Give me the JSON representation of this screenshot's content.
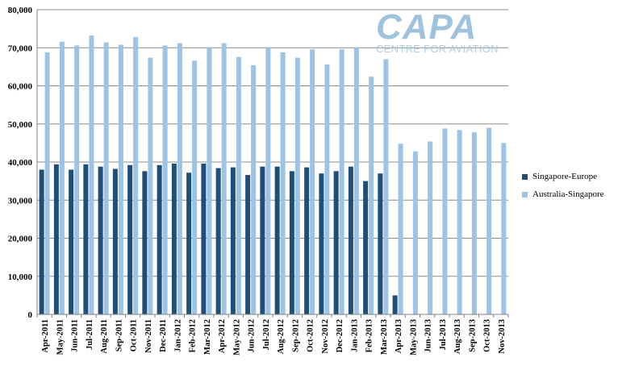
{
  "logo": {
    "main": "CAPA",
    "sub": "CENTRE FOR AVIATION"
  },
  "chart_data": {
    "type": "bar",
    "title": "",
    "xlabel": "",
    "ylabel": "",
    "ylim": [
      0,
      80000
    ],
    "yticks": [
      "0",
      "10,000",
      "20,000",
      "30,000",
      "40,000",
      "50,000",
      "60,000",
      "70,000",
      "80,000"
    ],
    "grid": true,
    "legend_position": "right",
    "categories": [
      "Apr-2011",
      "May-2011",
      "Jun-2011",
      "Jul-2011",
      "Aug-2011",
      "Sep-2011",
      "Oct-2011",
      "Nov-2011",
      "Dec-2011",
      "Jan-2012",
      "Feb-2012",
      "Mar-2012",
      "Apr-2012",
      "May-2012",
      "Jun-2012",
      "Jul-2012",
      "Aug-2012",
      "Sep-2012",
      "Oct-2012",
      "Nov-2012",
      "Dec-2012",
      "Jan-2013",
      "Feb-2013",
      "Mar-2013",
      "Apr-2013",
      "May-2013",
      "Jun-2013",
      "Jul-2013",
      "Aug-2013",
      "Sep-2013",
      "Oct-2013",
      "Nov-2013"
    ],
    "series": [
      {
        "name": "Singapore-Europe",
        "color": "#1f4e79",
        "values": [
          38000,
          39400,
          38000,
          39400,
          38800,
          38200,
          39200,
          37600,
          39200,
          39600,
          37200,
          39600,
          38400,
          38600,
          36600,
          38800,
          38800,
          37600,
          38600,
          37000,
          37600,
          38800,
          35000,
          37000,
          5000,
          null,
          null,
          null,
          null,
          null,
          null,
          null
        ]
      },
      {
        "name": "Australia-Singapore",
        "color": "#9dc3e6",
        "values": [
          68800,
          71600,
          70600,
          73200,
          71400,
          70800,
          72800,
          67400,
          70600,
          71200,
          66600,
          70000,
          71200,
          67600,
          65400,
          70000,
          68800,
          67400,
          69600,
          65600,
          69600,
          70000,
          62400,
          67000,
          44800,
          42800,
          45400,
          48800,
          48400,
          47800,
          49000,
          45000
        ]
      }
    ]
  }
}
